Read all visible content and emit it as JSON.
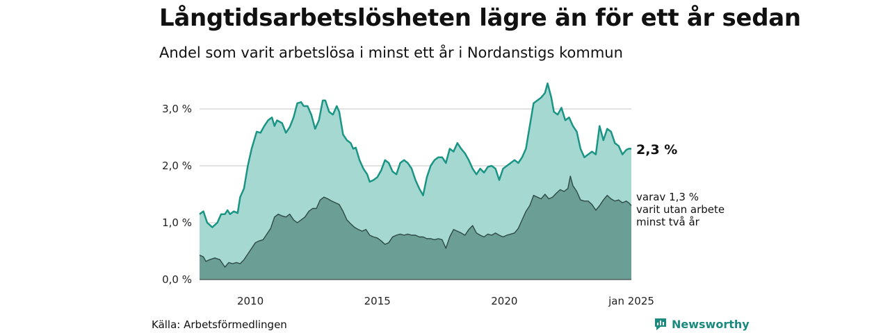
{
  "title": "Långtidsarbetslösheten lägre än för ett år sedan",
  "subtitle": "Andel som varit arbetslösa i minst ett år i Nordanstigs kommun",
  "source": "Källa: Arbetsförmedlingen",
  "brand": {
    "name": "Newsworthy",
    "icon": "newsworthy-logo-icon",
    "color": "#1a8a7e"
  },
  "chart_data": {
    "type": "area",
    "x_ticks": [
      "2010",
      "2015",
      "2020",
      "jan 2025"
    ],
    "y_ticks": [
      "0,0 %",
      "1,0 %",
      "2,0 %",
      "3,0 %"
    ],
    "ylim": [
      0,
      3.5
    ],
    "xlim": [
      2008.0,
      2025.0
    ],
    "grid": true,
    "end_labels": {
      "main": "2,3 %",
      "sub": [
        "varav 1,3 %",
        "varit utan arbete",
        "minst två år"
      ]
    },
    "colors": {
      "main_fill": "#a6d8d2",
      "main_line": "#1a9484",
      "sub_fill": "#6b9e94",
      "sub_line": "#2c4a44",
      "grid": "#d9d9d9"
    },
    "series": [
      {
        "values": [
          [
            2008.0,
            1.15
          ],
          [
            2008.15,
            1.2
          ],
          [
            2008.3,
            1.0
          ],
          [
            2008.5,
            0.92
          ],
          [
            2008.7,
            1.0
          ],
          [
            2008.85,
            1.15
          ],
          [
            2009.0,
            1.15
          ],
          [
            2009.1,
            1.22
          ],
          [
            2009.2,
            1.15
          ],
          [
            2009.35,
            1.2
          ],
          [
            2009.5,
            1.17
          ],
          [
            2009.6,
            1.45
          ],
          [
            2009.75,
            1.6
          ],
          [
            2009.9,
            2.0
          ],
          [
            2010.05,
            2.3
          ],
          [
            2010.25,
            2.6
          ],
          [
            2010.4,
            2.58
          ],
          [
            2010.55,
            2.7
          ],
          [
            2010.7,
            2.8
          ],
          [
            2010.85,
            2.85
          ],
          [
            2010.95,
            2.7
          ],
          [
            2011.05,
            2.8
          ],
          [
            2011.25,
            2.75
          ],
          [
            2011.4,
            2.58
          ],
          [
            2011.55,
            2.68
          ],
          [
            2011.7,
            2.85
          ],
          [
            2011.85,
            3.1
          ],
          [
            2012.0,
            3.12
          ],
          [
            2012.1,
            3.05
          ],
          [
            2012.25,
            3.05
          ],
          [
            2012.4,
            2.9
          ],
          [
            2012.55,
            2.65
          ],
          [
            2012.7,
            2.8
          ],
          [
            2012.85,
            3.15
          ],
          [
            2012.95,
            3.15
          ],
          [
            2013.1,
            2.95
          ],
          [
            2013.25,
            2.9
          ],
          [
            2013.4,
            3.05
          ],
          [
            2013.5,
            2.95
          ],
          [
            2013.65,
            2.55
          ],
          [
            2013.8,
            2.45
          ],
          [
            2013.95,
            2.4
          ],
          [
            2014.05,
            2.3
          ],
          [
            2014.15,
            2.32
          ],
          [
            2014.3,
            2.1
          ],
          [
            2014.45,
            1.95
          ],
          [
            2014.6,
            1.85
          ],
          [
            2014.7,
            1.72
          ],
          [
            2014.85,
            1.75
          ],
          [
            2015.0,
            1.8
          ],
          [
            2015.15,
            1.92
          ],
          [
            2015.3,
            2.1
          ],
          [
            2015.45,
            2.05
          ],
          [
            2015.6,
            1.9
          ],
          [
            2015.75,
            1.85
          ],
          [
            2015.9,
            2.05
          ],
          [
            2016.05,
            2.1
          ],
          [
            2016.2,
            2.05
          ],
          [
            2016.35,
            1.95
          ],
          [
            2016.5,
            1.75
          ],
          [
            2016.65,
            1.6
          ],
          [
            2016.8,
            1.48
          ],
          [
            2016.95,
            1.8
          ],
          [
            2017.1,
            2.0
          ],
          [
            2017.25,
            2.1
          ],
          [
            2017.4,
            2.15
          ],
          [
            2017.55,
            2.15
          ],
          [
            2017.7,
            2.05
          ],
          [
            2017.85,
            2.3
          ],
          [
            2018.0,
            2.25
          ],
          [
            2018.15,
            2.4
          ],
          [
            2018.3,
            2.3
          ],
          [
            2018.45,
            2.22
          ],
          [
            2018.6,
            2.1
          ],
          [
            2018.75,
            1.95
          ],
          [
            2018.9,
            1.85
          ],
          [
            2019.05,
            1.95
          ],
          [
            2019.2,
            1.88
          ],
          [
            2019.35,
            1.98
          ],
          [
            2019.5,
            2.0
          ],
          [
            2019.65,
            1.95
          ],
          [
            2019.8,
            1.75
          ],
          [
            2019.95,
            1.95
          ],
          [
            2020.1,
            2.0
          ],
          [
            2020.25,
            2.05
          ],
          [
            2020.4,
            2.1
          ],
          [
            2020.55,
            2.05
          ],
          [
            2020.7,
            2.15
          ],
          [
            2020.85,
            2.3
          ],
          [
            2021.0,
            2.7
          ],
          [
            2021.15,
            3.1
          ],
          [
            2021.3,
            3.15
          ],
          [
            2021.45,
            3.2
          ],
          [
            2021.6,
            3.28
          ],
          [
            2021.7,
            3.45
          ],
          [
            2021.85,
            3.2
          ],
          [
            2021.95,
            2.95
          ],
          [
            2022.1,
            2.9
          ],
          [
            2022.25,
            3.02
          ],
          [
            2022.4,
            2.8
          ],
          [
            2022.55,
            2.85
          ],
          [
            2022.7,
            2.7
          ],
          [
            2022.85,
            2.6
          ],
          [
            2023.0,
            2.3
          ],
          [
            2023.15,
            2.15
          ],
          [
            2023.3,
            2.2
          ],
          [
            2023.45,
            2.25
          ],
          [
            2023.6,
            2.2
          ],
          [
            2023.75,
            2.7
          ],
          [
            2023.9,
            2.45
          ],
          [
            2024.05,
            2.65
          ],
          [
            2024.2,
            2.6
          ],
          [
            2024.35,
            2.4
          ],
          [
            2024.5,
            2.35
          ],
          [
            2024.65,
            2.2
          ],
          [
            2024.8,
            2.28
          ],
          [
            2024.9,
            2.3
          ],
          [
            2025.0,
            2.3
          ]
        ]
      },
      {
        "values": [
          [
            2008.0,
            0.43
          ],
          [
            2008.15,
            0.4
          ],
          [
            2008.25,
            0.32
          ],
          [
            2008.4,
            0.35
          ],
          [
            2008.6,
            0.38
          ],
          [
            2008.8,
            0.35
          ],
          [
            2009.0,
            0.22
          ],
          [
            2009.15,
            0.3
          ],
          [
            2009.3,
            0.28
          ],
          [
            2009.45,
            0.3
          ],
          [
            2009.6,
            0.28
          ],
          [
            2009.75,
            0.35
          ],
          [
            2009.9,
            0.45
          ],
          [
            2010.05,
            0.55
          ],
          [
            2010.2,
            0.65
          ],
          [
            2010.35,
            0.68
          ],
          [
            2010.5,
            0.7
          ],
          [
            2010.65,
            0.8
          ],
          [
            2010.8,
            0.9
          ],
          [
            2010.95,
            1.1
          ],
          [
            2011.1,
            1.15
          ],
          [
            2011.25,
            1.12
          ],
          [
            2011.4,
            1.1
          ],
          [
            2011.55,
            1.15
          ],
          [
            2011.7,
            1.05
          ],
          [
            2011.85,
            1.0
          ],
          [
            2012.0,
            1.05
          ],
          [
            2012.15,
            1.1
          ],
          [
            2012.3,
            1.2
          ],
          [
            2012.45,
            1.25
          ],
          [
            2012.6,
            1.25
          ],
          [
            2012.75,
            1.4
          ],
          [
            2012.9,
            1.45
          ],
          [
            2013.05,
            1.42
          ],
          [
            2013.2,
            1.38
          ],
          [
            2013.35,
            1.35
          ],
          [
            2013.5,
            1.32
          ],
          [
            2013.65,
            1.2
          ],
          [
            2013.8,
            1.05
          ],
          [
            2013.95,
            0.98
          ],
          [
            2014.1,
            0.92
          ],
          [
            2014.25,
            0.88
          ],
          [
            2014.4,
            0.85
          ],
          [
            2014.55,
            0.88
          ],
          [
            2014.7,
            0.78
          ],
          [
            2014.85,
            0.75
          ],
          [
            2015.0,
            0.73
          ],
          [
            2015.15,
            0.68
          ],
          [
            2015.3,
            0.62
          ],
          [
            2015.45,
            0.65
          ],
          [
            2015.6,
            0.75
          ],
          [
            2015.75,
            0.78
          ],
          [
            2015.9,
            0.8
          ],
          [
            2016.05,
            0.78
          ],
          [
            2016.2,
            0.8
          ],
          [
            2016.35,
            0.78
          ],
          [
            2016.5,
            0.78
          ],
          [
            2016.65,
            0.75
          ],
          [
            2016.8,
            0.75
          ],
          [
            2016.95,
            0.72
          ],
          [
            2017.1,
            0.72
          ],
          [
            2017.25,
            0.7
          ],
          [
            2017.4,
            0.72
          ],
          [
            2017.55,
            0.7
          ],
          [
            2017.7,
            0.55
          ],
          [
            2017.85,
            0.75
          ],
          [
            2018.0,
            0.88
          ],
          [
            2018.15,
            0.85
          ],
          [
            2018.3,
            0.82
          ],
          [
            2018.45,
            0.78
          ],
          [
            2018.6,
            0.88
          ],
          [
            2018.75,
            0.95
          ],
          [
            2018.9,
            0.82
          ],
          [
            2019.05,
            0.78
          ],
          [
            2019.2,
            0.75
          ],
          [
            2019.35,
            0.8
          ],
          [
            2019.5,
            0.78
          ],
          [
            2019.65,
            0.82
          ],
          [
            2019.8,
            0.78
          ],
          [
            2019.95,
            0.75
          ],
          [
            2020.1,
            0.78
          ],
          [
            2020.25,
            0.8
          ],
          [
            2020.4,
            0.82
          ],
          [
            2020.55,
            0.9
          ],
          [
            2020.7,
            1.05
          ],
          [
            2020.85,
            1.2
          ],
          [
            2021.0,
            1.3
          ],
          [
            2021.15,
            1.48
          ],
          [
            2021.3,
            1.45
          ],
          [
            2021.45,
            1.42
          ],
          [
            2021.6,
            1.5
          ],
          [
            2021.75,
            1.42
          ],
          [
            2021.9,
            1.45
          ],
          [
            2022.05,
            1.52
          ],
          [
            2022.2,
            1.58
          ],
          [
            2022.35,
            1.55
          ],
          [
            2022.5,
            1.6
          ],
          [
            2022.6,
            1.82
          ],
          [
            2022.7,
            1.65
          ],
          [
            2022.85,
            1.55
          ],
          [
            2023.0,
            1.4
          ],
          [
            2023.15,
            1.38
          ],
          [
            2023.3,
            1.38
          ],
          [
            2023.45,
            1.32
          ],
          [
            2023.6,
            1.22
          ],
          [
            2023.75,
            1.3
          ],
          [
            2023.9,
            1.4
          ],
          [
            2024.05,
            1.48
          ],
          [
            2024.2,
            1.42
          ],
          [
            2024.35,
            1.38
          ],
          [
            2024.5,
            1.4
          ],
          [
            2024.65,
            1.35
          ],
          [
            2024.8,
            1.38
          ],
          [
            2024.9,
            1.35
          ],
          [
            2025.0,
            1.3
          ]
        ]
      }
    ]
  }
}
